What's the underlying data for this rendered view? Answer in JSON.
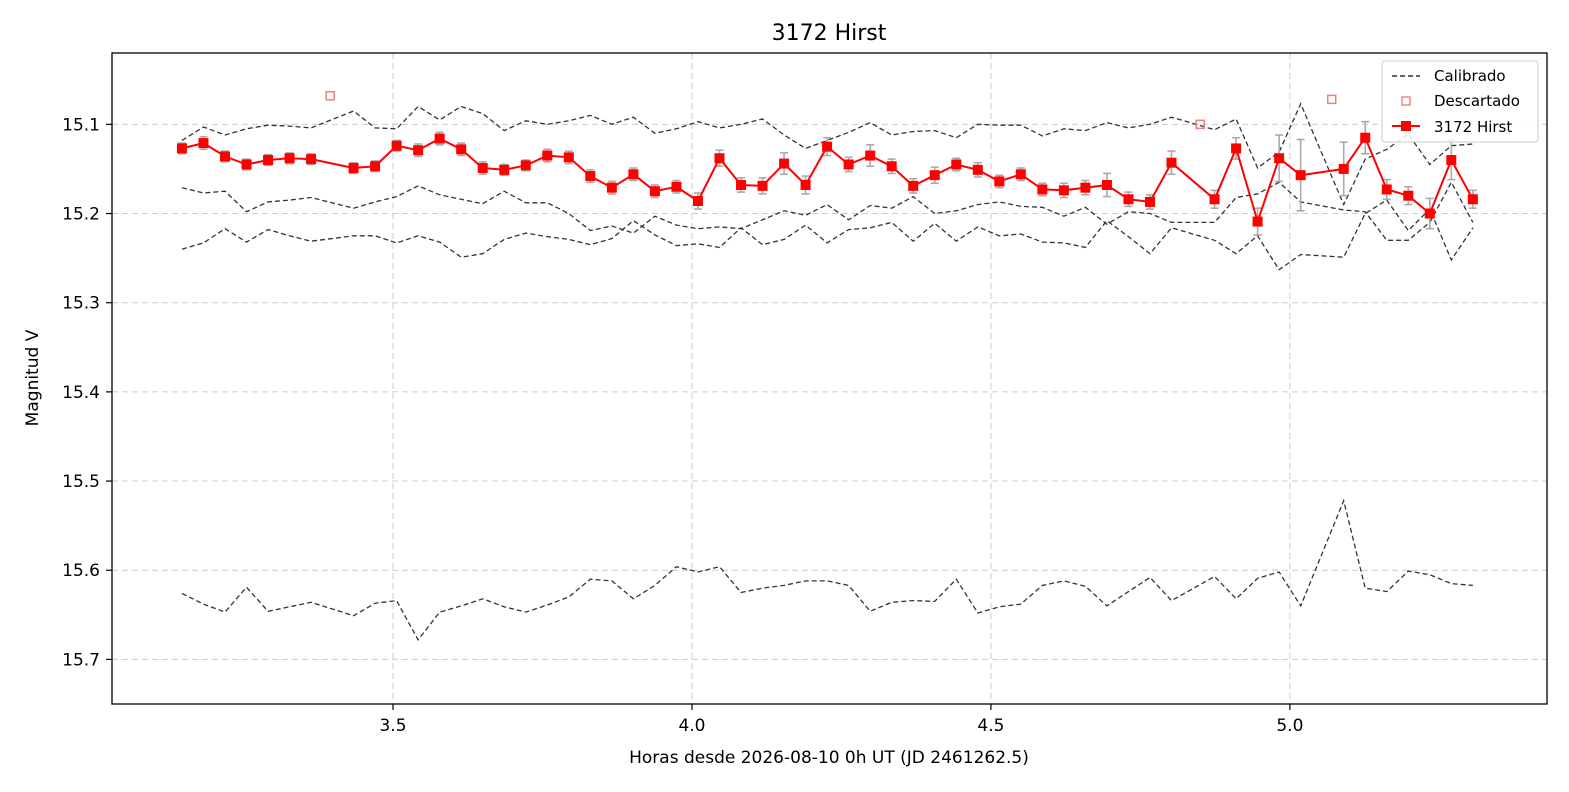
{
  "chart_data": {
    "type": "line",
    "title": "3172 Hirst",
    "xlabel": "Horas desde 2026-08-10 0h UT (JD 2461262.5)",
    "ylabel": "Magnitud V",
    "xlim": [
      3.03,
      5.43
    ],
    "ylim": [
      15.75,
      15.02
    ],
    "y_inverted": true,
    "grid": true,
    "legend_position": "top-right",
    "x_ticks": [
      3.5,
      4.0,
      4.5,
      5.0
    ],
    "x_tick_labels": [
      "3.5",
      "4.0",
      "4.5",
      "5.0"
    ],
    "y_ticks": [
      15.1,
      15.2,
      15.3,
      15.4,
      15.5,
      15.6,
      15.7
    ],
    "y_tick_labels": [
      "15.1",
      "15.2",
      "15.3",
      "15.4",
      "15.5",
      "15.6",
      "15.7"
    ],
    "x": [
      3.147,
      3.183,
      3.219,
      3.255,
      3.291,
      3.327,
      3.363,
      3.434,
      3.47,
      3.506,
      3.542,
      3.578,
      3.614,
      3.65,
      3.686,
      3.722,
      3.758,
      3.794,
      3.83,
      3.866,
      3.902,
      3.938,
      3.974,
      4.01,
      4.046,
      4.082,
      4.118,
      4.154,
      4.19,
      4.226,
      4.262,
      4.298,
      4.334,
      4.37,
      4.406,
      4.442,
      4.478,
      4.514,
      4.55,
      4.586,
      4.622,
      4.658,
      4.694,
      4.73,
      4.766,
      4.802,
      4.874,
      4.91,
      4.946,
      4.982,
      5.018,
      5.09,
      5.126,
      5.162,
      5.198,
      5.234,
      5.27,
      5.306
    ],
    "calibrated_series": [
      {
        "name": "Calibrado",
        "values": [
          15.118,
          15.103,
          15.112,
          15.105,
          15.101,
          15.102,
          15.104,
          15.085,
          15.104,
          15.105,
          15.08,
          15.095,
          15.08,
          15.088,
          15.107,
          15.096,
          15.1,
          15.096,
          15.09,
          15.1,
          15.092,
          15.11,
          15.105,
          15.097,
          15.104,
          15.1,
          15.094,
          15.112,
          15.127,
          15.118,
          15.109,
          15.098,
          15.112,
          15.108,
          15.107,
          15.115,
          15.1,
          15.101,
          15.101,
          15.113,
          15.105,
          15.107,
          15.098,
          15.104,
          15.1,
          15.092,
          15.106,
          15.094,
          15.149,
          15.131,
          15.077,
          15.19,
          15.139,
          15.128,
          15.111,
          15.145,
          15.124,
          15.122
        ]
      },
      {
        "name": "",
        "values": [
          15.171,
          15.177,
          15.175,
          15.198,
          15.187,
          15.185,
          15.182,
          15.194,
          15.187,
          15.181,
          15.169,
          15.179,
          15.184,
          15.189,
          15.175,
          15.188,
          15.188,
          15.2,
          15.219,
          15.214,
          15.222,
          15.203,
          15.213,
          15.217,
          15.215,
          15.217,
          15.207,
          15.197,
          15.202,
          15.19,
          15.207,
          15.191,
          15.194,
          15.181,
          15.2,
          15.197,
          15.19,
          15.187,
          15.192,
          15.193,
          15.203,
          15.193,
          15.212,
          15.198,
          15.2,
          15.21,
          15.21,
          15.182,
          15.178,
          15.165,
          15.187,
          15.196,
          15.198,
          15.23,
          15.23,
          15.21,
          15.165,
          15.21
        ]
      },
      {
        "name": "",
        "values": [
          15.24,
          15.233,
          15.217,
          15.232,
          15.218,
          15.225,
          15.231,
          15.225,
          15.225,
          15.233,
          15.225,
          15.232,
          15.249,
          15.245,
          15.229,
          15.222,
          15.226,
          15.229,
          15.235,
          15.228,
          15.208,
          15.224,
          15.236,
          15.234,
          15.238,
          15.216,
          15.235,
          15.229,
          15.213,
          15.233,
          15.218,
          15.216,
          15.21,
          15.231,
          15.211,
          15.231,
          15.215,
          15.225,
          15.223,
          15.232,
          15.233,
          15.238,
          15.208,
          15.226,
          15.245,
          15.216,
          15.23,
          15.245,
          15.225,
          15.263,
          15.246,
          15.249,
          15.2,
          15.185,
          15.219,
          15.195,
          15.252,
          15.216
        ]
      },
      {
        "name": "",
        "values": [
          15.626,
          15.638,
          15.647,
          15.619,
          15.646,
          15.641,
          15.636,
          15.651,
          15.637,
          15.634,
          15.678,
          15.647,
          15.64,
          15.632,
          15.641,
          15.647,
          15.639,
          15.63,
          15.61,
          15.612,
          15.632,
          15.617,
          15.596,
          15.602,
          15.596,
          15.625,
          15.62,
          15.617,
          15.612,
          15.612,
          15.617,
          15.646,
          15.636,
          15.634,
          15.635,
          15.61,
          15.648,
          15.641,
          15.638,
          15.617,
          15.612,
          15.618,
          15.64,
          15.624,
          15.608,
          15.634,
          15.607,
          15.632,
          15.609,
          15.602,
          15.64,
          15.522,
          15.62,
          15.624,
          15.601,
          15.605,
          15.615,
          15.617
        ]
      }
    ],
    "target_series": {
      "name": "3172 Hirst",
      "x": [
        3.147,
        3.183,
        3.219,
        3.255,
        3.291,
        3.327,
        3.363,
        3.434,
        3.47,
        3.506,
        3.542,
        3.578,
        3.614,
        3.65,
        3.686,
        3.722,
        3.758,
        3.794,
        3.83,
        3.866,
        3.902,
        3.938,
        3.974,
        4.01,
        4.046,
        4.082,
        4.118,
        4.154,
        4.19,
        4.226,
        4.262,
        4.298,
        4.334,
        4.37,
        4.406,
        4.442,
        4.478,
        4.514,
        4.55,
        4.586,
        4.622,
        4.658,
        4.694,
        4.73,
        4.766,
        4.802,
        4.874,
        4.91,
        4.946,
        4.982,
        5.018,
        5.09,
        5.126,
        5.162,
        5.198,
        5.234,
        5.27,
        5.306
      ],
      "values": [
        15.127,
        15.121,
        15.136,
        15.145,
        15.14,
        15.138,
        15.139,
        15.149,
        15.147,
        15.124,
        15.129,
        15.116,
        15.128,
        15.149,
        15.151,
        15.146,
        15.135,
        15.137,
        15.158,
        15.171,
        15.156,
        15.175,
        15.17,
        15.186,
        15.138,
        15.168,
        15.169,
        15.144,
        15.168,
        15.125,
        15.145,
        15.135,
        15.147,
        15.169,
        15.157,
        15.145,
        15.151,
        15.164,
        15.156,
        15.173,
        15.174,
        15.171,
        15.168,
        15.184,
        15.187,
        15.143,
        15.184,
        15.127,
        15.209,
        15.138,
        15.157,
        15.15,
        15.115,
        15.173,
        15.18,
        15.2,
        15.14,
        15.184
      ],
      "errors": [
        0.006,
        0.007,
        0.006,
        0.006,
        0.006,
        0.006,
        0.006,
        0.006,
        0.006,
        0.006,
        0.007,
        0.007,
        0.007,
        0.007,
        0.006,
        0.006,
        0.007,
        0.007,
        0.007,
        0.007,
        0.007,
        0.007,
        0.007,
        0.009,
        0.009,
        0.008,
        0.009,
        0.012,
        0.01,
        0.01,
        0.008,
        0.012,
        0.008,
        0.008,
        0.009,
        0.007,
        0.008,
        0.007,
        0.007,
        0.007,
        0.008,
        0.008,
        0.013,
        0.008,
        0.008,
        0.013,
        0.01,
        0.012,
        0.015,
        0.026,
        0.04,
        0.03,
        0.018,
        0.011,
        0.01,
        0.017,
        0.022,
        0.01
      ]
    },
    "discarded_points": {
      "name": "Descartado",
      "x": [
        3.395,
        4.85,
        5.07
      ],
      "values": [
        15.068,
        15.1,
        15.072
      ]
    },
    "colors": {
      "target": "#ff0000",
      "calibrated": "#333333",
      "discarded": "#f08080",
      "errorbar": "#aaaaaa",
      "grid": "#cccccc"
    },
    "legend": [
      {
        "label": "Calibrado",
        "style": "dashed-line"
      },
      {
        "label": "Descartado",
        "style": "open-square"
      },
      {
        "label": "3172 Hirst",
        "style": "line-square"
      }
    ]
  }
}
